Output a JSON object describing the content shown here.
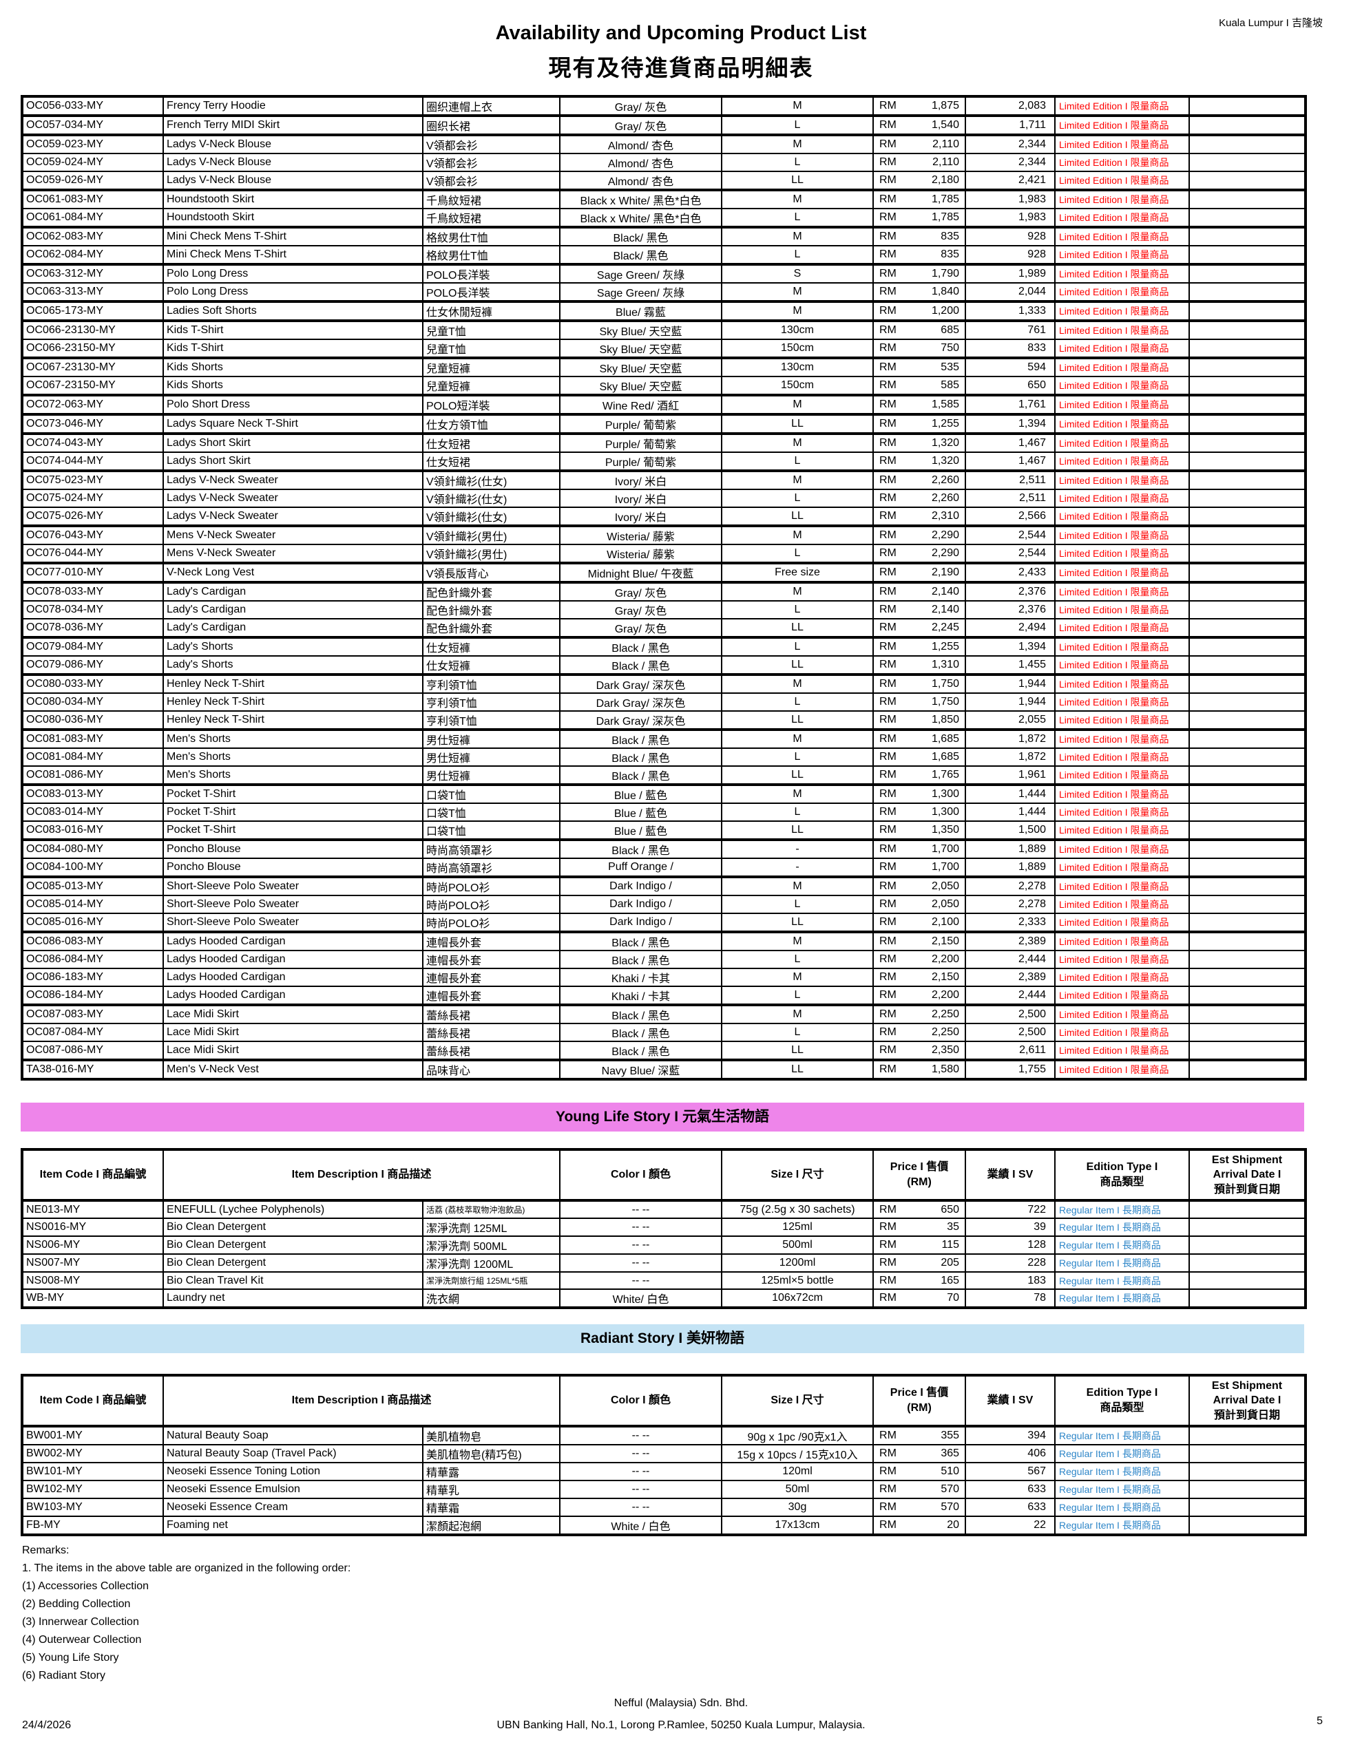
{
  "page": {
    "location": "Kuala Lumpur I 吉隆坡",
    "title_en": "Availability and Upcoming Product List",
    "title_zh": "現有及待進貨商品明細表"
  },
  "labels": {
    "currency": "RM",
    "limited_edition": "Limited Edition I 限量商品",
    "regular_item": "Regular Item I 長期商品"
  },
  "colors": {
    "limited_text": "#FF0000",
    "regular_text": "#2E86C8",
    "pink_banner": "#EE85EA",
    "blue_banner": "#C4E3F4"
  },
  "table_header": {
    "item_code": "Item Code I 商品編號",
    "item_description": "Item Description I 商品描述",
    "color": "Color I 顏色",
    "size": "Size I 尺寸",
    "price_line1": "Price I 售價",
    "price_line2": "(RM)",
    "sv": "業績 I SV",
    "edition_line1": "Edition Type I",
    "edition_line2": "商品類型",
    "est_line1": "Est Shipment",
    "est_line2": "Arrival Date I",
    "est_line3": "預計到貨日期"
  },
  "main_table": {
    "rows": [
      {
        "code": "OC056-033-MY",
        "desc_en": "Frency Terry Hoodie",
        "desc_zh": "圈织連帽上衣",
        "color": "Gray/ 灰色",
        "size": "M",
        "price": "1,875",
        "sv": "2,083",
        "group": true
      },
      {
        "code": "OC057-034-MY",
        "desc_en": "French Terry MIDI Skirt",
        "desc_zh": "圈织长裙",
        "color": "Gray/ 灰色",
        "size": "L",
        "price": "1,540",
        "sv": "1,711",
        "group": true
      },
      {
        "code": "OC059-023-MY",
        "desc_en": "Ladys V-Neck Blouse",
        "desc_zh": "V領都会衫",
        "color": "Almond/ 杏色",
        "size": "M",
        "price": "2,110",
        "sv": "2,344",
        "group": true
      },
      {
        "code": "OC059-024-MY",
        "desc_en": "Ladys V-Neck Blouse",
        "desc_zh": "V領都会衫",
        "color": "Almond/ 杏色",
        "size": "L",
        "price": "2,110",
        "sv": "2,344",
        "group": false
      },
      {
        "code": "OC059-026-MY",
        "desc_en": "Ladys V-Neck Blouse",
        "desc_zh": "V領都会衫",
        "color": "Almond/ 杏色",
        "size": "LL",
        "price": "2,180",
        "sv": "2,421",
        "group": false
      },
      {
        "code": "OC061-083-MY",
        "desc_en": "Houndstooth Skirt",
        "desc_zh": "千鳥紋短裙",
        "color": "Black x White/ 黑色*白色",
        "size": "M",
        "price": "1,785",
        "sv": "1,983",
        "group": true
      },
      {
        "code": "OC061-084-MY",
        "desc_en": "Houndstooth Skirt",
        "desc_zh": "千鳥紋短裙",
        "color": "Black x White/ 黑色*白色",
        "size": "L",
        "price": "1,785",
        "sv": "1,983",
        "group": false
      },
      {
        "code": "OC062-083-MY",
        "desc_en": "Mini Check Mens T-Shirt",
        "desc_zh": "格紋男仕T恤",
        "color": "Black/ 黑色",
        "size": "M",
        "price": "835",
        "sv": "928",
        "group": true
      },
      {
        "code": "OC062-084-MY",
        "desc_en": "Mini Check Mens T-Shirt",
        "desc_zh": "格紋男仕T恤",
        "color": "Black/ 黑色",
        "size": "L",
        "price": "835",
        "sv": "928",
        "group": false
      },
      {
        "code": "OC063-312-MY",
        "desc_en": "Polo Long Dress",
        "desc_zh": "POLO長洋裝",
        "color": "Sage Green/ 灰綠",
        "size": "S",
        "price": "1,790",
        "sv": "1,989",
        "group": true
      },
      {
        "code": "OC063-313-MY",
        "desc_en": "Polo Long Dress",
        "desc_zh": "POLO長洋裝",
        "color": "Sage Green/ 灰綠",
        "size": "M",
        "price": "1,840",
        "sv": "2,044",
        "group": false
      },
      {
        "code": "OC065-173-MY",
        "desc_en": "Ladies Soft Shorts",
        "desc_zh": "仕女休閒短褲",
        "color": "Blue/ 霧藍",
        "size": "M",
        "price": "1,200",
        "sv": "1,333",
        "group": true
      },
      {
        "code": "OC066-23130-MY",
        "desc_en": "Kids T-Shirt",
        "desc_zh": "兒童T恤",
        "color": "Sky Blue/ 天空藍",
        "size": "130cm",
        "price": "685",
        "sv": "761",
        "group": true
      },
      {
        "code": "OC066-23150-MY",
        "desc_en": "Kids T-Shirt",
        "desc_zh": "兒童T恤",
        "color": "Sky Blue/ 天空藍",
        "size": "150cm",
        "price": "750",
        "sv": "833",
        "group": false
      },
      {
        "code": "OC067-23130-MY",
        "desc_en": "Kids Shorts",
        "desc_zh": "兒童短褲",
        "color": "Sky Blue/ 天空藍",
        "size": "130cm",
        "price": "535",
        "sv": "594",
        "group": true
      },
      {
        "code": "OC067-23150-MY",
        "desc_en": "Kids Shorts",
        "desc_zh": "兒童短褲",
        "color": "Sky Blue/ 天空藍",
        "size": "150cm",
        "price": "585",
        "sv": "650",
        "group": false
      },
      {
        "code": "OC072-063-MY",
        "desc_en": "Polo Short Dress",
        "desc_zh": "POLO短洋裝",
        "color": "Wine Red/ 酒紅",
        "size": "M",
        "price": "1,585",
        "sv": "1,761",
        "group": true
      },
      {
        "code": "OC073-046-MY",
        "desc_en": "Ladys Square Neck T-Shirt",
        "desc_zh": "仕女方領T恤",
        "color": "Purple/ 葡萄紫",
        "size": "LL",
        "price": "1,255",
        "sv": "1,394",
        "group": true
      },
      {
        "code": "OC074-043-MY",
        "desc_en": "Ladys Short Skirt",
        "desc_zh": "仕女短裙",
        "color": "Purple/ 葡萄紫",
        "size": "M",
        "price": "1,320",
        "sv": "1,467",
        "group": true
      },
      {
        "code": "OC074-044-MY",
        "desc_en": "Ladys Short Skirt",
        "desc_zh": "仕女短裙",
        "color": "Purple/ 葡萄紫",
        "size": "L",
        "price": "1,320",
        "sv": "1,467",
        "group": false
      },
      {
        "code": "OC075-023-MY",
        "desc_en": "Ladys V-Neck Sweater",
        "desc_zh": "V領針織衫(仕女)",
        "color": "Ivory/ 米白",
        "size": "M",
        "price": "2,260",
        "sv": "2,511",
        "group": true
      },
      {
        "code": "OC075-024-MY",
        "desc_en": "Ladys V-Neck Sweater",
        "desc_zh": "V領針織衫(仕女)",
        "color": "Ivory/ 米白",
        "size": "L",
        "price": "2,260",
        "sv": "2,511",
        "group": false
      },
      {
        "code": "OC075-026-MY",
        "desc_en": "Ladys V-Neck Sweater",
        "desc_zh": "V領針織衫(仕女)",
        "color": "Ivory/ 米白",
        "size": "LL",
        "price": "2,310",
        "sv": "2,566",
        "group": false
      },
      {
        "code": "OC076-043-MY",
        "desc_en": "Mens V-Neck Sweater",
        "desc_zh": "V領針織衫(男仕)",
        "color": "Wisteria/ 藤紫",
        "size": "M",
        "price": "2,290",
        "sv": "2,544",
        "group": true
      },
      {
        "code": "OC076-044-MY",
        "desc_en": "Mens V-Neck Sweater",
        "desc_zh": "V領針織衫(男仕)",
        "color": "Wisteria/ 藤紫",
        "size": "L",
        "price": "2,290",
        "sv": "2,544",
        "group": false
      },
      {
        "code": "OC077-010-MY",
        "desc_en": "V-Neck Long Vest",
        "desc_zh": "V領長版背心",
        "color": "Midnight Blue/ 午夜藍",
        "size": "Free size",
        "price": "2,190",
        "sv": "2,433",
        "group": true
      },
      {
        "code": "OC078-033-MY",
        "desc_en": "Lady's Cardigan",
        "desc_zh": "配色針織外套",
        "color": "Gray/ 灰色",
        "size": "M",
        "price": "2,140",
        "sv": "2,376",
        "group": true
      },
      {
        "code": "OC078-034-MY",
        "desc_en": "Lady's Cardigan",
        "desc_zh": "配色針織外套",
        "color": "Gray/ 灰色",
        "size": "L",
        "price": "2,140",
        "sv": "2,376",
        "group": false
      },
      {
        "code": "OC078-036-MY",
        "desc_en": "Lady's Cardigan",
        "desc_zh": "配色針織外套",
        "color": "Gray/ 灰色",
        "size": "LL",
        "price": "2,245",
        "sv": "2,494",
        "group": false
      },
      {
        "code": "OC079-084-MY",
        "desc_en": "Lady's Shorts",
        "desc_zh": "仕女短褲",
        "color": "Black / 黑色",
        "size": "L",
        "price": "1,255",
        "sv": "1,394",
        "group": true
      },
      {
        "code": "OC079-086-MY",
        "desc_en": "Lady's Shorts",
        "desc_zh": "仕女短褲",
        "color": "Black / 黑色",
        "size": "LL",
        "price": "1,310",
        "sv": "1,455",
        "group": false
      },
      {
        "code": "OC080-033-MY",
        "desc_en": "Henley Neck T-Shirt",
        "desc_zh": "亨利領T恤",
        "color": "Dark Gray/ 深灰色",
        "size": "M",
        "price": "1,750",
        "sv": "1,944",
        "group": true
      },
      {
        "code": "OC080-034-MY",
        "desc_en": "Henley Neck T-Shirt",
        "desc_zh": "亨利領T恤",
        "color": "Dark Gray/ 深灰色",
        "size": "L",
        "price": "1,750",
        "sv": "1,944",
        "group": false
      },
      {
        "code": "OC080-036-MY",
        "desc_en": "Henley Neck T-Shirt",
        "desc_zh": "亨利領T恤",
        "color": "Dark Gray/ 深灰色",
        "size": "LL",
        "price": "1,850",
        "sv": "2,055",
        "group": false
      },
      {
        "code": "OC081-083-MY",
        "desc_en": "Men's Shorts",
        "desc_zh": "男仕短褲",
        "color": "Black / 黑色",
        "size": "M",
        "price": "1,685",
        "sv": "1,872",
        "group": true
      },
      {
        "code": "OC081-084-MY",
        "desc_en": "Men's Shorts",
        "desc_zh": "男仕短褲",
        "color": "Black / 黑色",
        "size": "L",
        "price": "1,685",
        "sv": "1,872",
        "group": false
      },
      {
        "code": "OC081-086-MY",
        "desc_en": "Men's Shorts",
        "desc_zh": "男仕短褲",
        "color": "Black / 黑色",
        "size": "LL",
        "price": "1,765",
        "sv": "1,961",
        "group": false
      },
      {
        "code": "OC083-013-MY",
        "desc_en": "Pocket T-Shirt",
        "desc_zh": "口袋T恤",
        "color": "Blue / 藍色",
        "size": "M",
        "price": "1,300",
        "sv": "1,444",
        "group": true
      },
      {
        "code": "OC083-014-MY",
        "desc_en": "Pocket T-Shirt",
        "desc_zh": "口袋T恤",
        "color": "Blue / 藍色",
        "size": "L",
        "price": "1,300",
        "sv": "1,444",
        "group": false
      },
      {
        "code": "OC083-016-MY",
        "desc_en": "Pocket T-Shirt",
        "desc_zh": "口袋T恤",
        "color": "Blue / 藍色",
        "size": "LL",
        "price": "1,350",
        "sv": "1,500",
        "group": false
      },
      {
        "code": "OC084-080-MY",
        "desc_en": "Poncho Blouse",
        "desc_zh": "時尚高領罩衫",
        "color": "Black / 黑色",
        "size": "-",
        "price": "1,700",
        "sv": "1,889",
        "group": true
      },
      {
        "code": "OC084-100-MY",
        "desc_en": "Poncho Blouse",
        "desc_zh": "時尚高領罩衫",
        "color": "Puff Orange /",
        "size": "-",
        "price": "1,700",
        "sv": "1,889",
        "group": false
      },
      {
        "code": "OC085-013-MY",
        "desc_en": "Short-Sleeve Polo Sweater",
        "desc_zh": "時尚POLO衫",
        "color": "Dark Indigo /",
        "size": "M",
        "price": "2,050",
        "sv": "2,278",
        "group": true
      },
      {
        "code": "OC085-014-MY",
        "desc_en": "Short-Sleeve Polo Sweater",
        "desc_zh": "時尚POLO衫",
        "color": "Dark Indigo /",
        "size": "L",
        "price": "2,050",
        "sv": "2,278",
        "group": false
      },
      {
        "code": "OC085-016-MY",
        "desc_en": "Short-Sleeve Polo Sweater",
        "desc_zh": "時尚POLO衫",
        "color": "Dark Indigo /",
        "size": "LL",
        "price": "2,100",
        "sv": "2,333",
        "group": false
      },
      {
        "code": "OC086-083-MY",
        "desc_en": "Ladys Hooded Cardigan",
        "desc_zh": "連帽長外套",
        "color": "Black / 黑色",
        "size": "M",
        "price": "2,150",
        "sv": "2,389",
        "group": true
      },
      {
        "code": "OC086-084-MY",
        "desc_en": "Ladys Hooded Cardigan",
        "desc_zh": "連帽長外套",
        "color": "Black / 黑色",
        "size": "L",
        "price": "2,200",
        "sv": "2,444",
        "group": false
      },
      {
        "code": "OC086-183-MY",
        "desc_en": "Ladys Hooded Cardigan",
        "desc_zh": "連帽長外套",
        "color": "Khaki / 卡其",
        "size": "M",
        "price": "2,150",
        "sv": "2,389",
        "group": false
      },
      {
        "code": "OC086-184-MY",
        "desc_en": "Ladys Hooded Cardigan",
        "desc_zh": "連帽長外套",
        "color": "Khaki / 卡其",
        "size": "L",
        "price": "2,200",
        "sv": "2,444",
        "group": false
      },
      {
        "code": "OC087-083-MY",
        "desc_en": "Lace Midi Skirt",
        "desc_zh": "蕾絲長裙",
        "color": "Black / 黑色",
        "size": "M",
        "price": "2,250",
        "sv": "2,500",
        "group": true
      },
      {
        "code": "OC087-084-MY",
        "desc_en": "Lace Midi Skirt",
        "desc_zh": "蕾絲長裙",
        "color": "Black / 黑色",
        "size": "L",
        "price": "2,250",
        "sv": "2,500",
        "group": false
      },
      {
        "code": "OC087-086-MY",
        "desc_en": "Lace Midi Skirt",
        "desc_zh": "蕾絲長裙",
        "color": "Black / 黑色",
        "size": "LL",
        "price": "2,350",
        "sv": "2,611",
        "group": false
      },
      {
        "code": "TA38-016-MY",
        "desc_en": "Men's V-Neck Vest",
        "desc_zh": "品味背心",
        "color": "Navy Blue/ 深藍",
        "size": "LL",
        "price": "1,580",
        "sv": "1,755",
        "group": true
      }
    ]
  },
  "young_life": {
    "banner": "Young Life Story I 元氣生活物語",
    "rows": [
      {
        "code": "NE013-MY",
        "desc_en": "ENEFULL (Lychee Polyphenols)",
        "desc_zh": "活荔 (荔枝萃取物沖泡飲品)",
        "zh_small": true,
        "color": "-- --",
        "size": "75g (2.5g x 30 sachets)",
        "price": "650",
        "sv": "722",
        "group": false
      },
      {
        "code": "NS0016-MY",
        "desc_en": "Bio Clean Detergent",
        "desc_zh": "潔淨洗劑 125ML",
        "color": "-- --",
        "size": "125ml",
        "price": "35",
        "sv": "39",
        "group": false
      },
      {
        "code": "NS006-MY",
        "desc_en": "Bio Clean Detergent",
        "desc_zh": "潔淨洗劑 500ML",
        "color": "-- --",
        "size": "500ml",
        "price": "115",
        "sv": "128",
        "group": false
      },
      {
        "code": "NS007-MY",
        "desc_en": "Bio Clean Detergent",
        "desc_zh": "潔淨洗劑 1200ML",
        "color": "-- --",
        "size": "1200ml",
        "price": "205",
        "sv": "228",
        "group": false
      },
      {
        "code": "NS008-MY",
        "desc_en": "Bio Clean Travel Kit",
        "desc_zh": "潔淨洗劑旅行組 125ML*5瓶",
        "zh_small": true,
        "color": "-- --",
        "size": "125ml×5 bottle",
        "price": "165",
        "sv": "183",
        "group": false
      },
      {
        "code": "WB-MY",
        "desc_en": "Laundry net",
        "desc_zh": "洗衣網",
        "color": "White/ 白色",
        "size": "106x72cm",
        "price": "70",
        "sv": "78",
        "group": false
      }
    ]
  },
  "radiant": {
    "banner": "Radiant Story I 美妍物語",
    "rows": [
      {
        "code": "BW001-MY",
        "desc_en": "Natural Beauty Soap",
        "desc_zh": "美肌植物皂",
        "color": "-- --",
        "size": "90g x 1pc /90克x1入",
        "price": "355",
        "sv": "394",
        "group": false
      },
      {
        "code": "BW002-MY",
        "desc_en": "Natural Beauty Soap (Travel Pack)",
        "desc_zh": "美肌植物皂(精巧包)",
        "color": "-- --",
        "size": "15g x 10pcs / 15克x10入",
        "price": "365",
        "sv": "406",
        "group": false
      },
      {
        "code": "BW101-MY",
        "desc_en": "Neoseki Essence Toning Lotion",
        "desc_zh": "精華露",
        "color": "-- --",
        "size": "120ml",
        "price": "510",
        "sv": "567",
        "group": false
      },
      {
        "code": "BW102-MY",
        "desc_en": "Neoseki Essence Emulsion",
        "desc_zh": "精華乳",
        "color": "-- --",
        "size": "50ml",
        "price": "570",
        "sv": "633",
        "group": false
      },
      {
        "code": "BW103-MY",
        "desc_en": "Neoseki Essence Cream",
        "desc_zh": "精華霜",
        "color": "-- --",
        "size": "30g",
        "price": "570",
        "sv": "633",
        "group": false
      },
      {
        "code": "FB-MY",
        "desc_en": "Foaming net",
        "desc_zh": "潔顏起泡網",
        "color": "White / 白色",
        "size": "17x13cm",
        "price": "20",
        "sv": "22",
        "group": false
      }
    ]
  },
  "remarks": {
    "title": "Remarks:",
    "intro": "1. The items in the above table are organized in the following order:",
    "items": [
      "(1) Accessories Collection",
      "(2) Bedding Collection",
      "(3) Innerwear Collection",
      "(4) Outerwear Collection",
      "(5) Young Life Story",
      "(6) Radiant Story"
    ]
  },
  "footer": {
    "date": "24/4/2026",
    "company": "Nefful (Malaysia) Sdn. Bhd.",
    "address": "UBN Banking Hall, No.1, Lorong P.Ramlee, 50250 Kuala Lumpur, Malaysia.",
    "page_number": "5"
  }
}
